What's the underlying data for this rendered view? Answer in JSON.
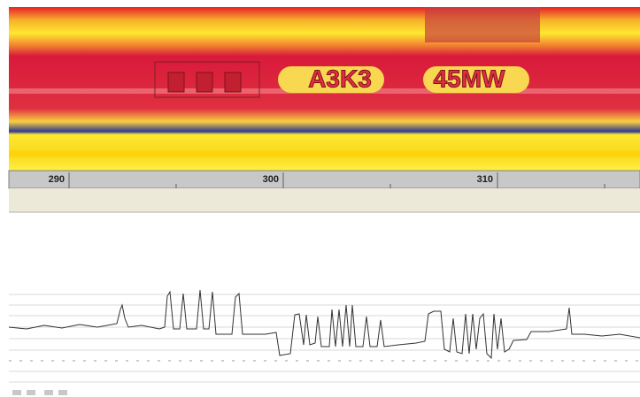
{
  "ruler": {
    "labels": [
      290,
      300,
      310
    ]
  },
  "image": {
    "plate_labels": [
      "A3K3",
      "45MW"
    ]
  }
}
